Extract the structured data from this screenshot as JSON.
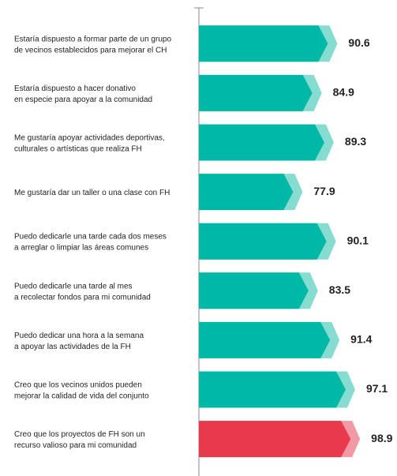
{
  "chart_data": {
    "type": "bar",
    "orientation": "horizontal",
    "categories": [
      [
        "Estaría dispuesto a formar parte de un grupo",
        "de vecinos establecidos para mejorar el CH"
      ],
      [
        "Estaría dispuesto a hacer donativo",
        "en especie para apoyar a la comunidad"
      ],
      [
        "Me gustaría apoyar actividades deportivas,",
        "culturales o artísticas que realiza FH"
      ],
      [
        "Me gustaría dar un taller o una clase con FH"
      ],
      [
        "Puedo dedicarle una tarde cada dos meses",
        "a arreglar o limpiar las áreas comunes"
      ],
      [
        "Puedo dedicarle una tarde al mes",
        "a recolectar fondos para mi comunidad"
      ],
      [
        "Puedo dedicar una hora a la semana",
        "a apoyar las actividades de la FH"
      ],
      [
        "Creo que los vecinos unidos pueden",
        "mejorar la calidad de vida del conjunto"
      ],
      [
        "Creo que los proyectos de FH son un",
        "recurso valioso para mi comunidad"
      ]
    ],
    "values": [
      90.6,
      84.9,
      89.3,
      77.9,
      90.1,
      83.5,
      91.4,
      97.1,
      98.9
    ],
    "colors": [
      "#00b8a6",
      "#00b8a6",
      "#00b8a6",
      "#00b8a6",
      "#00b8a6",
      "#00b8a6",
      "#00b8a6",
      "#00b8a6",
      "#e83a4c"
    ],
    "tip_colors": [
      "#86dcd1",
      "#86dcd1",
      "#86dcd1",
      "#86dcd1",
      "#86dcd1",
      "#86dcd1",
      "#86dcd1",
      "#86dcd1",
      "#f29aa3"
    ],
    "xlim": [
      40,
      100
    ]
  }
}
